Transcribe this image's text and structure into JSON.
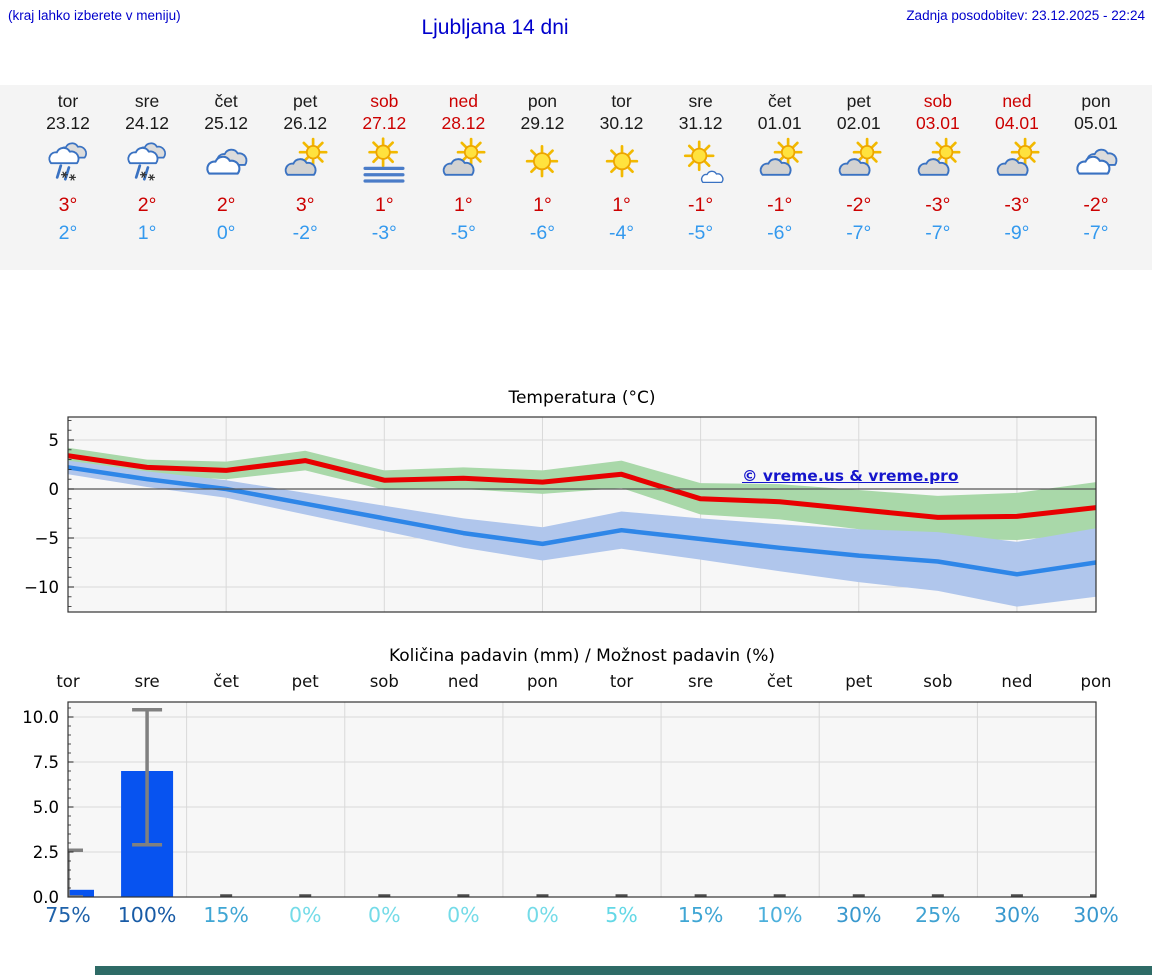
{
  "header": {
    "hint": "(kraj lahko izberete v meniju)",
    "title": "Ljubljana 14 dni",
    "last_update": "Zadnja posodobitev: 23.12.2025 - 22:24"
  },
  "watermark": "© vreme.us & vreme.pro",
  "colors": {
    "header_blue": "#0000cc",
    "weekend_red": "#cc0000",
    "high_temp_red": "#cc0000",
    "low_temp_blue": "#3399ee",
    "line_red": "#e80000",
    "line_blue": "#2e86e8",
    "band_green": "#a9d8a9",
    "band_blue": "#b0c6ec",
    "bar_blue": "#0753f0",
    "strip_bg": "#f4f4f4",
    "plot_bg": "#f7f7f7",
    "footer_teal": "#2e6b66"
  },
  "forecast": {
    "days": [
      {
        "day": "tor",
        "date": "23.12",
        "weekend": false,
        "icon": "sleet",
        "tmax": "3°",
        "tmin": "2°"
      },
      {
        "day": "sre",
        "date": "24.12",
        "weekend": false,
        "icon": "sleet",
        "tmax": "2°",
        "tmin": "1°"
      },
      {
        "day": "čet",
        "date": "25.12",
        "weekend": false,
        "icon": "cloudy",
        "tmax": "2°",
        "tmin": "0°"
      },
      {
        "day": "pet",
        "date": "26.12",
        "weekend": false,
        "icon": "partly-cloudy",
        "tmax": "3°",
        "tmin": "-2°"
      },
      {
        "day": "sob",
        "date": "27.12",
        "weekend": true,
        "icon": "fog-sun",
        "tmax": "1°",
        "tmin": "-3°"
      },
      {
        "day": "ned",
        "date": "28.12",
        "weekend": true,
        "icon": "partly-cloudy",
        "tmax": "1°",
        "tmin": "-5°"
      },
      {
        "day": "pon",
        "date": "29.12",
        "weekend": false,
        "icon": "sunny",
        "tmax": "1°",
        "tmin": "-6°"
      },
      {
        "day": "tor",
        "date": "30.12",
        "weekend": false,
        "icon": "sunny",
        "tmax": "1°",
        "tmin": "-4°"
      },
      {
        "day": "sre",
        "date": "31.12",
        "weekend": false,
        "icon": "mostly-sunny",
        "tmax": "-1°",
        "tmin": "-5°"
      },
      {
        "day": "čet",
        "date": "01.01",
        "weekend": false,
        "icon": "partly-cloudy",
        "tmax": "-1°",
        "tmin": "-6°"
      },
      {
        "day": "pet",
        "date": "02.01",
        "weekend": false,
        "icon": "partly-cloudy",
        "tmax": "-2°",
        "tmin": "-7°"
      },
      {
        "day": "sob",
        "date": "03.01",
        "weekend": true,
        "icon": "partly-cloudy",
        "tmax": "-3°",
        "tmin": "-7°"
      },
      {
        "day": "ned",
        "date": "04.01",
        "weekend": true,
        "icon": "partly-cloudy",
        "tmax": "-3°",
        "tmin": "-9°"
      },
      {
        "day": "pon",
        "date": "05.01",
        "weekend": false,
        "icon": "cloudy",
        "tmax": "-2°",
        "tmin": "-7°"
      }
    ]
  },
  "chart_data": [
    {
      "type": "line",
      "title": "Temperatura (°C)",
      "x_categories": [
        "23.12",
        "24.12",
        "25.12",
        "26.12",
        "27.12",
        "28.12",
        "29.12",
        "30.12",
        "31.12",
        "01.01",
        "02.01",
        "03.01",
        "04.01",
        "05.01"
      ],
      "ylim": [
        -12.5,
        7.3
      ],
      "yticks": [
        5,
        0,
        -5,
        -10
      ],
      "grid": true,
      "series": [
        {
          "name": "max temperature",
          "color": "#e80000",
          "band_color": "#a9d8a9",
          "values": [
            3.4,
            2.2,
            1.9,
            2.9,
            0.9,
            1.1,
            0.7,
            1.5,
            -1.0,
            -1.3,
            -2.1,
            -2.9,
            -2.8,
            -1.9
          ],
          "band_halfwidth": [
            0.8,
            0.8,
            0.9,
            1.0,
            1.0,
            1.1,
            1.2,
            1.4,
            1.6,
            1.8,
            2.0,
            2.2,
            2.4,
            2.6
          ]
        },
        {
          "name": "min temperature",
          "color": "#2e86e8",
          "band_color": "#b0c6ec",
          "values": [
            2.2,
            1.0,
            0.0,
            -1.5,
            -3.0,
            -4.5,
            -5.6,
            -4.2,
            -5.1,
            -6.0,
            -6.8,
            -7.4,
            -8.7,
            -7.5
          ],
          "band_halfwidth": [
            0.7,
            0.8,
            0.9,
            1.1,
            1.3,
            1.5,
            1.7,
            1.9,
            2.1,
            2.4,
            2.7,
            3.0,
            3.3,
            3.5
          ]
        }
      ],
      "watermark": "© vreme.us & vreme.pro"
    },
    {
      "type": "bar",
      "title": "Količina padavin (mm) / Možnost padavin (%)",
      "categories": [
        "tor",
        "sre",
        "čet",
        "pet",
        "sob",
        "ned",
        "pon",
        "tor",
        "sre",
        "čet",
        "pet",
        "sob",
        "ned",
        "pon"
      ],
      "values": [
        0.4,
        7.0,
        0,
        0,
        0,
        0,
        0,
        0,
        0,
        0,
        0,
        0,
        0,
        0
      ],
      "error_low": [
        0,
        2.9,
        0,
        0,
        0,
        0,
        0,
        0,
        0,
        0,
        0,
        0,
        0,
        0
      ],
      "error_high": [
        2.6,
        10.4,
        0,
        0,
        0,
        0,
        0,
        0,
        0,
        0,
        0,
        0,
        0,
        0
      ],
      "probabilities": [
        "75%",
        "100%",
        "15%",
        "0%",
        "0%",
        "0%",
        "0%",
        "5%",
        "15%",
        "10%",
        "30%",
        "25%",
        "30%",
        "30%"
      ],
      "prob_colors": [
        "#1f62aa",
        "#185ba6",
        "#3fa6d4",
        "#74dbe8",
        "#74dbe8",
        "#74dbe8",
        "#74dbe8",
        "#63d8e6",
        "#3fa6d4",
        "#4cb0dc",
        "#3898ce",
        "#3fa2d2",
        "#3898ce",
        "#3898ce"
      ],
      "ylim": [
        0,
        10.8
      ],
      "yticks": [
        "0.0",
        "2.5",
        "5.0",
        "7.5",
        "10.0"
      ],
      "bar_color": "#0753f0",
      "grid": true
    }
  ]
}
